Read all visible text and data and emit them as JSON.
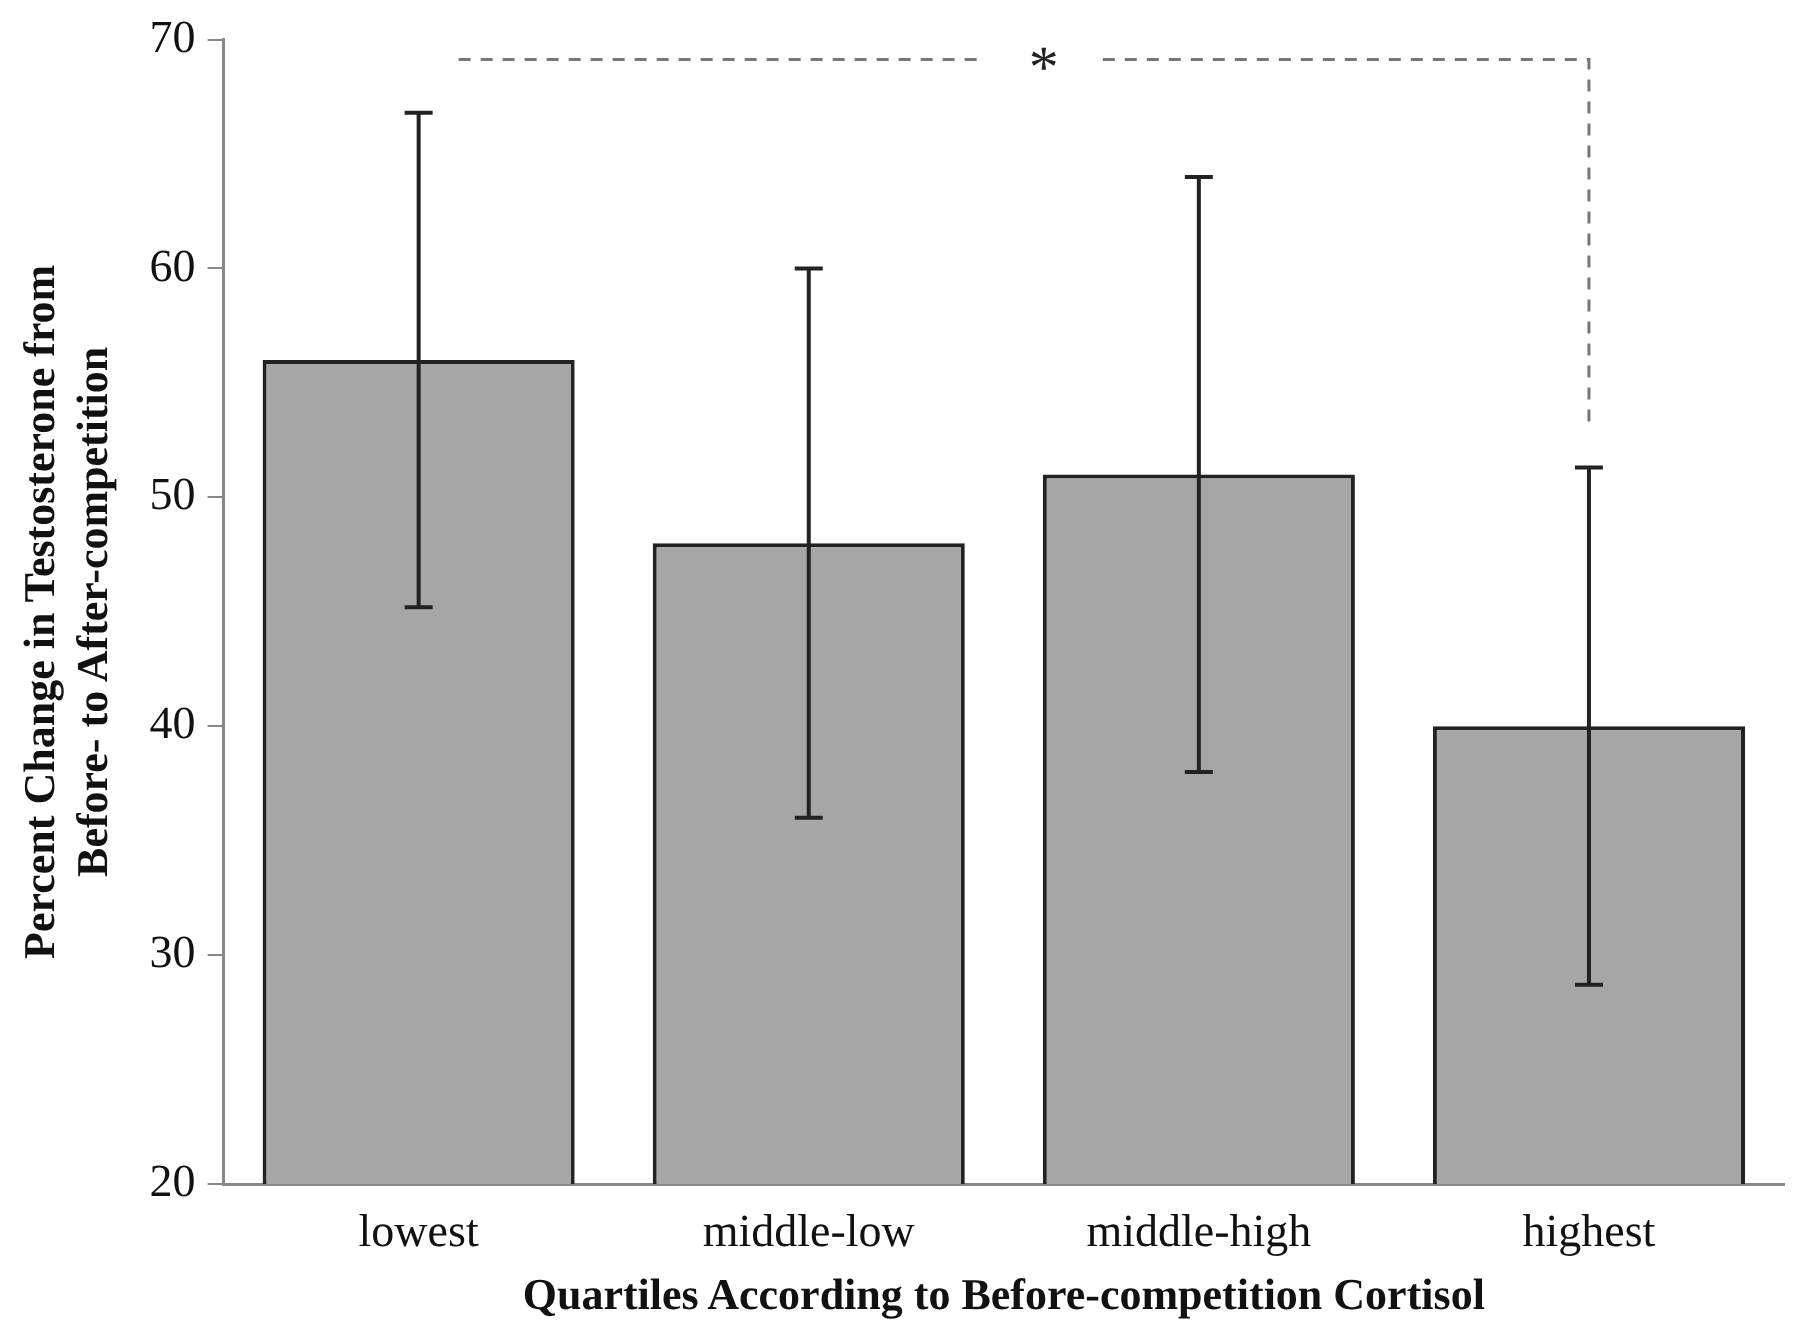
{
  "chart_data": {
    "type": "bar",
    "xlabel": "Quartiles According to Before-competition Cortisol",
    "ylabel": "Percent Change in Testosterone from Before- to After-competition",
    "categories": [
      "lowest",
      "middle-low",
      "middle-high",
      "highest"
    ],
    "values": [
      56,
      48,
      51,
      40
    ],
    "errors": [
      10.8,
      12,
      13,
      11.3
    ],
    "color": "#a6a6a6",
    "ylim": [
      20,
      70
    ],
    "yticks": [
      20,
      30,
      40,
      50,
      60,
      70
    ],
    "grid": false,
    "legend": false,
    "annotations": [
      "*"
    ]
  }
}
